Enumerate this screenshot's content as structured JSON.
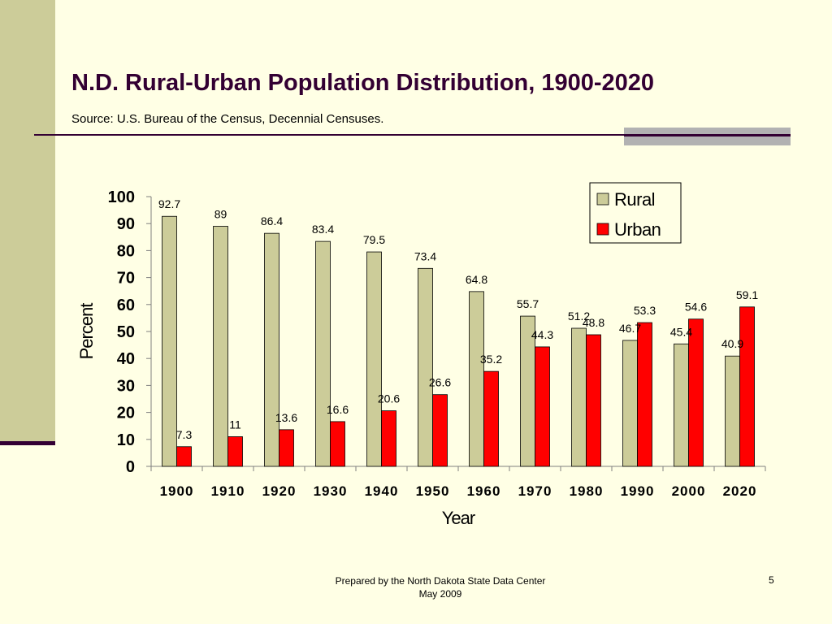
{
  "slide": {
    "title": "N.D. Rural-Urban Population Distribution, 1900-2020",
    "subtitle": "Source: U.S. Bureau of the Census, Decennial Censuses.",
    "footer_line1": "Prepared by the North Dakota State Data Center",
    "footer_line2": "May 2009",
    "page_number": "5"
  },
  "chart_data": {
    "type": "bar",
    "categories": [
      "1900",
      "1910",
      "1920",
      "1930",
      "1940",
      "1950",
      "1960",
      "1970",
      "1980",
      "1990",
      "2000",
      "2020"
    ],
    "series": [
      {
        "name": "Rural",
        "values": [
          92.7,
          89,
          86.4,
          83.4,
          79.5,
          73.4,
          64.8,
          55.7,
          51.2,
          46.7,
          45.4,
          40.9
        ],
        "color": "#CCCC99"
      },
      {
        "name": "Urban",
        "values": [
          7.3,
          11,
          13.6,
          16.6,
          20.6,
          26.6,
          35.2,
          44.3,
          48.8,
          53.3,
          54.6,
          59.1
        ],
        "color": "#FF0000"
      }
    ],
    "xlabel": "Year",
    "ylabel": "Percent",
    "ylim": [
      0,
      100
    ],
    "yticks": [
      "0",
      "10",
      "20",
      "30",
      "40",
      "50",
      "60",
      "70",
      "80",
      "90",
      "100"
    ],
    "grid": false,
    "legend": "top-right"
  }
}
